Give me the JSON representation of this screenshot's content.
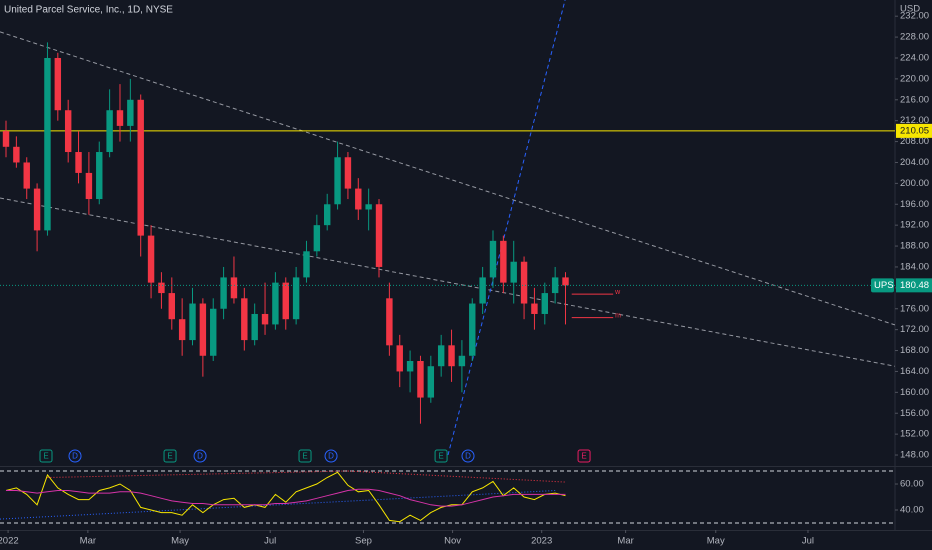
{
  "chart_data": [
    {
      "type": "candlestick",
      "title": "United Parcel Service, Inc., 1D, NYSE",
      "symbol": "UPS",
      "currency": "USD",
      "categories": [
        null,
        null,
        null,
        null,
        null,
        null,
        null,
        null,
        null,
        null,
        null,
        null,
        null,
        null,
        null,
        null,
        null,
        null,
        null,
        null,
        null,
        null,
        null,
        null,
        null,
        null,
        null,
        null,
        null,
        null,
        null,
        null,
        null,
        null,
        null,
        null,
        null,
        null,
        null,
        null,
        null,
        null,
        null,
        null,
        null,
        null,
        null,
        null,
        null,
        null,
        null,
        null,
        null,
        null,
        null
      ],
      "open": [
        210,
        207,
        204,
        199,
        191,
        224,
        214,
        206,
        202,
        197,
        206,
        214,
        211,
        216,
        190,
        181,
        179,
        174,
        170,
        177,
        167,
        176,
        182,
        178,
        170,
        175,
        173,
        181,
        174,
        182,
        187,
        192,
        196,
        205,
        199,
        195,
        196,
        178,
        169,
        164,
        166,
        159,
        165,
        169,
        165,
        167,
        177,
        182,
        189,
        181,
        185,
        177,
        175,
        179,
        182
      ],
      "high": [
        212,
        209,
        205,
        200,
        227,
        225,
        216,
        210,
        206,
        208,
        218,
        219,
        220,
        217,
        192,
        183,
        182,
        178,
        180,
        178,
        178,
        184,
        186,
        180,
        177,
        181,
        183,
        182,
        184,
        189,
        194,
        198,
        208,
        206,
        201,
        199,
        197,
        181,
        171,
        168,
        167,
        167,
        171,
        172,
        170,
        178,
        184,
        191,
        190,
        189,
        186,
        180,
        181,
        184,
        183
      ],
      "low": [
        205,
        203,
        197,
        187,
        190,
        212,
        204,
        200,
        194,
        196,
        205,
        208,
        208,
        186,
        178,
        176,
        172,
        167,
        169,
        163,
        166,
        174,
        177,
        168,
        169,
        171,
        172,
        172,
        173,
        181,
        186,
        191,
        195,
        197,
        193,
        191,
        182,
        167,
        161,
        160,
        154,
        158,
        163,
        162,
        160,
        166,
        175,
        180,
        179,
        177,
        174,
        172,
        173,
        177,
        173
      ],
      "close": [
        207,
        204,
        199,
        191,
        224,
        214,
        206,
        202,
        197,
        206,
        214,
        211,
        216,
        190,
        181,
        179,
        174,
        170,
        177,
        167,
        176,
        182,
        178,
        170,
        175,
        173,
        181,
        174,
        182,
        187,
        192,
        196,
        205,
        199,
        195,
        196,
        184,
        169,
        164,
        166,
        159,
        165,
        169,
        165,
        167,
        177,
        182,
        189,
        181,
        185,
        177,
        175,
        179,
        182,
        180.48
      ],
      "up_color": "#089981",
      "down_color": "#f23645",
      "xlim": [
        -0.58,
        85.8
      ],
      "xticks": [
        {
          "value": 0.2,
          "label": "2022"
        },
        {
          "value": 7.9,
          "label": "Mar"
        },
        {
          "value": 16.8,
          "label": "May"
        },
        {
          "value": 25.5,
          "label": "Jul"
        },
        {
          "value": 34.5,
          "label": "Sep"
        },
        {
          "value": 43.1,
          "label": "Nov"
        },
        {
          "value": 51.7,
          "label": "2023"
        },
        {
          "value": 59.8,
          "label": "Mar"
        },
        {
          "value": 68.5,
          "label": "May"
        },
        {
          "value": 77.4,
          "label": "Jul"
        }
      ],
      "ylim": [
        145.9,
        235.1
      ],
      "yticks": [
        {
          "value": 148,
          "label": "148.00"
        },
        {
          "value": 152,
          "label": "152.00"
        },
        {
          "value": 156,
          "label": "156.00"
        },
        {
          "value": 160,
          "label": "160.00"
        },
        {
          "value": 164,
          "label": "164.00"
        },
        {
          "value": 168,
          "label": "168.00"
        },
        {
          "value": 172,
          "label": "172.00"
        },
        {
          "value": 176,
          "label": "176.00"
        },
        {
          "value": 180,
          "label": "180.00"
        },
        {
          "value": 184,
          "label": "184.00"
        },
        {
          "value": 188,
          "label": "188.00"
        },
        {
          "value": 192,
          "label": "192.00"
        },
        {
          "value": 196,
          "label": "196.00"
        },
        {
          "value": 200,
          "label": "200.00"
        },
        {
          "value": 204,
          "label": "204.00"
        },
        {
          "value": 208,
          "label": "208.00"
        },
        {
          "value": 212,
          "label": "212.00"
        },
        {
          "value": 216,
          "label": "216.00"
        },
        {
          "value": 220,
          "label": "220.00"
        },
        {
          "value": 224,
          "label": "224.00"
        },
        {
          "value": 228,
          "label": "228.00"
        },
        {
          "value": 232,
          "label": "232.00"
        }
      ],
      "hline": {
        "value": 210.05,
        "color": "#f7e600"
      },
      "trendlines": [
        {
          "points": [
            [
              -0.58,
              229.0
            ],
            [
              85.8,
              172.9
            ]
          ],
          "color": "#9598a1"
        },
        {
          "points": [
            [
              -0.58,
              197.2
            ],
            [
              85.8,
              165.0
            ]
          ],
          "color": "#9598a1"
        },
        {
          "points": [
            [
              42.66,
              148.0
            ],
            [
              53.96,
              235.1
            ]
          ],
          "color": "#2962ff"
        }
      ],
      "levels": [
        {
          "label": "w",
          "value": 178.8,
          "x": [
            54.6,
            58.6
          ],
          "color": "#f23645"
        },
        {
          "label": "m",
          "value": 174.3,
          "x": [
            54.6,
            58.6
          ],
          "color": "#f23645"
        }
      ],
      "events": [
        {
          "label": "E",
          "x": 3.86,
          "color": "#089981"
        },
        {
          "label": "D",
          "x": 6.66,
          "color": "#2962ff"
        },
        {
          "label": "E",
          "x": 15.83,
          "color": "#089981"
        },
        {
          "label": "D",
          "x": 18.73,
          "color": "#2962ff"
        },
        {
          "label": "E",
          "x": 28.86,
          "color": "#089981"
        },
        {
          "label": "D",
          "x": 31.37,
          "color": "#2962ff"
        },
        {
          "label": "E",
          "x": 41.99,
          "color": "#089981"
        },
        {
          "label": "D",
          "x": 44.59,
          "color": "#2962ff"
        },
        {
          "label": "E",
          "x": 55.79,
          "color": "#e91e63"
        }
      ]
    },
    {
      "type": "line",
      "xlim": [
        -0.58,
        85.8
      ],
      "ylim": [
        24.6,
        73.1
      ],
      "yticks": [
        {
          "value": 40,
          "label": "40.00"
        },
        {
          "value": 60,
          "label": "60.00"
        }
      ],
      "bands": [
        70,
        30
      ],
      "series": [
        {
          "color": "#f7e600",
          "values": [
            55,
            57,
            52,
            44,
            67,
            57,
            52,
            48,
            48,
            55,
            57,
            60,
            55,
            42,
            40,
            38,
            38,
            36,
            44,
            38,
            44,
            48,
            49,
            42,
            44,
            42,
            52,
            46,
            54,
            57,
            60,
            65,
            69,
            59,
            54,
            55,
            44,
            32,
            31,
            36,
            32,
            38,
            42,
            44,
            44,
            54,
            57,
            62,
            51,
            57,
            50,
            48,
            52,
            53,
            51
          ]
        },
        {
          "color": "#d633a8",
          "values": [
            55,
            55,
            54,
            53,
            54,
            55,
            55,
            54,
            53,
            53,
            53,
            54,
            54,
            53,
            51,
            49,
            47,
            46,
            45,
            45,
            44,
            44,
            44,
            44,
            44,
            44,
            45,
            45,
            46,
            47,
            49,
            51,
            53,
            55,
            56,
            56,
            55,
            53,
            51,
            48,
            46,
            44,
            43,
            43,
            44,
            46,
            48,
            50,
            51,
            52,
            52,
            52,
            52,
            52,
            52
          ]
        }
      ],
      "lines": [
        {
          "points": [
            [
              33,
              70
            ],
            [
              54,
              61.5
            ]
          ],
          "color": "#f23645"
        },
        {
          "points": [
            [
              4,
              65
            ],
            [
              33,
              70
            ]
          ],
          "color": "#f23645"
        },
        {
          "points": [
            [
              -0.58,
              33
            ],
            [
              53,
              55
            ]
          ],
          "color": "#2962ff"
        }
      ]
    }
  ]
}
